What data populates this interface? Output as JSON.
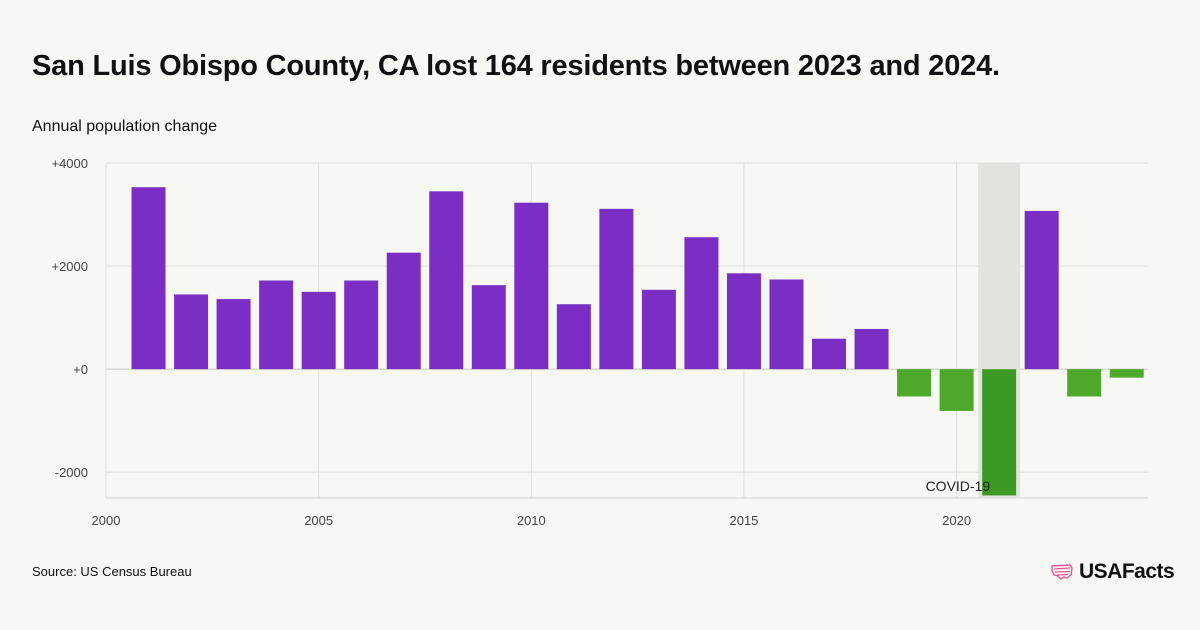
{
  "title": "San Luis Obispo County, CA lost 164 residents between 2023 and 2024.",
  "source": "Source: US Census Bureau",
  "brand": "USAFacts",
  "colors": {
    "positive": "#7b2ec4",
    "negative": "#4ea82a",
    "covid_negative": "#3c9a24",
    "highlight": "#e3e3de",
    "logo": "#e8559a"
  },
  "icons": {
    "logo": "us-flag-map-icon"
  },
  "chart_data": {
    "type": "bar",
    "title": "San Luis Obispo County, CA lost 164 residents between 2023 and 2024.",
    "ylabel": "Annual population change",
    "xlim": [
      2000,
      2024.5
    ],
    "ylim": [
      -2500,
      4000
    ],
    "x_ticks": [
      2000,
      2005,
      2010,
      2015,
      2020
    ],
    "y_ticks": [
      {
        "value": 4000,
        "label": "+4000"
      },
      {
        "value": 2000,
        "label": "+2000"
      },
      {
        "value": 0,
        "label": "+0"
      },
      {
        "value": -2000,
        "label": "-2000"
      }
    ],
    "grid": true,
    "highlight": {
      "x": 2021,
      "label": "COVID-19"
    },
    "x": [
      2001,
      2002,
      2003,
      2004,
      2005,
      2006,
      2007,
      2008,
      2009,
      2010,
      2011,
      2012,
      2013,
      2014,
      2015,
      2016,
      2017,
      2018,
      2019,
      2020,
      2021,
      2022,
      2023,
      2024
    ],
    "values": [
      3530,
      1450,
      1360,
      1720,
      1500,
      1720,
      2260,
      3450,
      1630,
      3230,
      1260,
      3110,
      1540,
      2560,
      1860,
      1740,
      590,
      780,
      -530,
      -810,
      -2450,
      3070,
      -530,
      -164
    ]
  }
}
